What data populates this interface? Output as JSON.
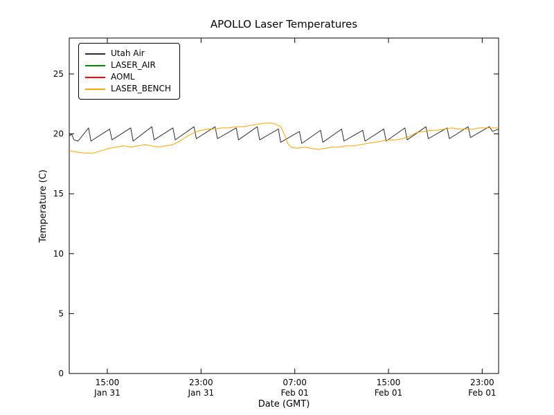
{
  "chart_data": {
    "type": "line",
    "title": "APOLLO Laser Temperatures",
    "xlabel": "Date (GMT)",
    "ylabel": "Temperature (C)",
    "x_unit": "hours since Jan 31 00:00 GMT",
    "xlim": [
      11.75,
      48.4
    ],
    "ylim": [
      0,
      28
    ],
    "grid": false,
    "legend_position": "upper left",
    "x_ticks": [
      {
        "value": 15,
        "time": "15:00",
        "date": "Jan 31"
      },
      {
        "value": 23,
        "time": "23:00",
        "date": "Jan 31"
      },
      {
        "value": 31,
        "time": "07:00",
        "date": "Feb 01"
      },
      {
        "value": 39,
        "time": "15:00",
        "date": "Feb 01"
      },
      {
        "value": 47,
        "time": "23:00",
        "date": "Feb 01"
      }
    ],
    "y_ticks": [
      0,
      5,
      10,
      15,
      20,
      25
    ],
    "series": [
      {
        "name": "Utah Air",
        "color": "#2b2b2b",
        "points": [
          [
            11.75,
            19.8
          ],
          [
            11.95,
            20.0
          ],
          [
            12.15,
            19.5
          ],
          [
            12.5,
            19.4
          ],
          [
            13.4,
            20.5
          ],
          [
            13.6,
            19.4
          ],
          [
            15.2,
            20.4
          ],
          [
            15.4,
            19.5
          ],
          [
            17.0,
            20.5
          ],
          [
            17.2,
            19.4
          ],
          [
            18.8,
            20.6
          ],
          [
            19.0,
            19.5
          ],
          [
            20.6,
            20.5
          ],
          [
            20.8,
            19.5
          ],
          [
            22.4,
            20.6
          ],
          [
            22.6,
            19.6
          ],
          [
            24.2,
            20.6
          ],
          [
            24.4,
            19.6
          ],
          [
            26.0,
            20.5
          ],
          [
            26.2,
            19.5
          ],
          [
            27.8,
            20.6
          ],
          [
            28.0,
            19.5
          ],
          [
            29.6,
            20.4
          ],
          [
            29.8,
            19.3
          ],
          [
            31.4,
            20.2
          ],
          [
            31.6,
            19.2
          ],
          [
            33.2,
            20.3
          ],
          [
            33.4,
            19.3
          ],
          [
            35.0,
            20.4
          ],
          [
            35.2,
            19.4
          ],
          [
            36.8,
            20.3
          ],
          [
            37.0,
            19.4
          ],
          [
            38.6,
            20.4
          ],
          [
            38.8,
            19.4
          ],
          [
            40.4,
            20.5
          ],
          [
            40.6,
            19.5
          ],
          [
            42.2,
            20.6
          ],
          [
            42.4,
            19.6
          ],
          [
            44.0,
            20.5
          ],
          [
            44.2,
            19.6
          ],
          [
            45.8,
            20.6
          ],
          [
            46.0,
            19.7
          ],
          [
            47.6,
            20.6
          ],
          [
            47.9,
            20.2
          ],
          [
            48.4,
            20.4
          ]
        ]
      },
      {
        "name": "LASER_AIR",
        "color": "#008000",
        "points": []
      },
      {
        "name": "AOML",
        "color": "#ff0000",
        "points": []
      },
      {
        "name": "LASER_BENCH",
        "color": "#ffa500",
        "points": [
          [
            11.75,
            18.6
          ],
          [
            12.3,
            18.5
          ],
          [
            13.0,
            18.4
          ],
          [
            13.8,
            18.4
          ],
          [
            14.5,
            18.6
          ],
          [
            15.2,
            18.8
          ],
          [
            15.8,
            18.9
          ],
          [
            16.4,
            19.0
          ],
          [
            17.0,
            18.9
          ],
          [
            17.6,
            19.0
          ],
          [
            18.2,
            19.1
          ],
          [
            18.8,
            19.0
          ],
          [
            19.4,
            18.9
          ],
          [
            20.0,
            19.0
          ],
          [
            20.6,
            19.1
          ],
          [
            21.2,
            19.4
          ],
          [
            21.8,
            19.8
          ],
          [
            22.4,
            20.1
          ],
          [
            23.0,
            20.3
          ],
          [
            23.6,
            20.4
          ],
          [
            24.2,
            20.4
          ],
          [
            24.8,
            20.5
          ],
          [
            25.4,
            20.5
          ],
          [
            26.0,
            20.6
          ],
          [
            26.6,
            20.6
          ],
          [
            27.2,
            20.7
          ],
          [
            27.8,
            20.8
          ],
          [
            28.4,
            20.9
          ],
          [
            29.0,
            20.9
          ],
          [
            29.4,
            20.8
          ],
          [
            29.8,
            20.6
          ],
          [
            30.1,
            20.0
          ],
          [
            30.4,
            19.2
          ],
          [
            30.7,
            18.9
          ],
          [
            31.2,
            18.8
          ],
          [
            31.8,
            18.9
          ],
          [
            32.4,
            18.8
          ],
          [
            33.0,
            18.7
          ],
          [
            33.6,
            18.8
          ],
          [
            34.2,
            18.9
          ],
          [
            34.8,
            18.9
          ],
          [
            35.4,
            19.0
          ],
          [
            36.0,
            19.0
          ],
          [
            36.6,
            19.1
          ],
          [
            37.2,
            19.2
          ],
          [
            37.8,
            19.3
          ],
          [
            38.4,
            19.4
          ],
          [
            39.0,
            19.5
          ],
          [
            39.6,
            19.5
          ],
          [
            40.2,
            19.6
          ],
          [
            40.8,
            19.8
          ],
          [
            41.4,
            20.1
          ],
          [
            42.0,
            20.2
          ],
          [
            42.6,
            20.3
          ],
          [
            43.2,
            20.3
          ],
          [
            43.8,
            20.4
          ],
          [
            44.4,
            20.5
          ],
          [
            45.0,
            20.4
          ],
          [
            45.6,
            20.4
          ],
          [
            46.2,
            20.4
          ],
          [
            46.8,
            20.5
          ],
          [
            47.4,
            20.5
          ],
          [
            48.0,
            20.5
          ],
          [
            48.4,
            20.5
          ]
        ]
      }
    ]
  }
}
